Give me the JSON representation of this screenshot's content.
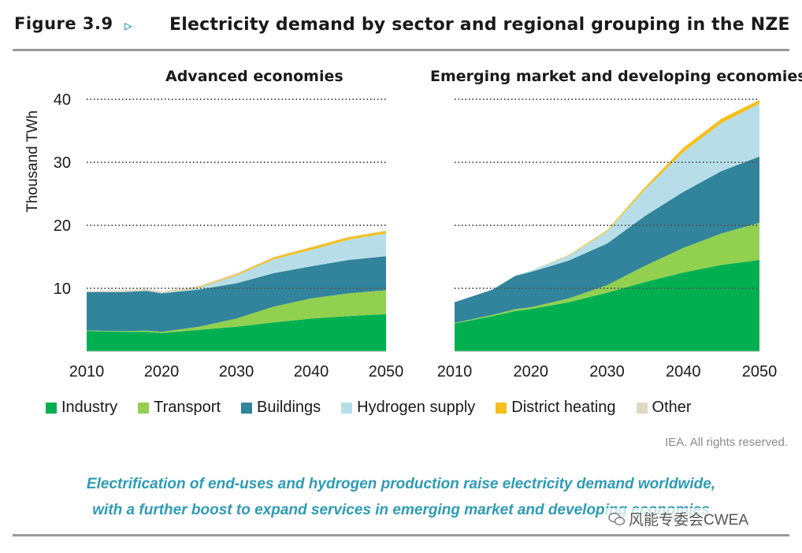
{
  "header": {
    "figure_label": "Figure 3.9",
    "arrow": "▹",
    "title": "Electricity demand by sector and regional grouping in the NZE"
  },
  "legend": [
    {
      "name": "Industry",
      "color": "#00b050"
    },
    {
      "name": "Transport",
      "color": "#92d050"
    },
    {
      "name": "Buildings",
      "color": "#31849b"
    },
    {
      "name": "Hydrogen supply",
      "color": "#b7dee8"
    },
    {
      "name": "District heating",
      "color": "#f5c01e"
    },
    {
      "name": "Other",
      "color": "#ddd9c4"
    }
  ],
  "rights": "IEA. All rights reserved.",
  "caption_lines": [
    "Electrification of end-uses and hydrogen production raise electricity demand worldwide,",
    "with a further boost to expand services in emerging market and developing economies"
  ],
  "watermark": "风能专委会CWEA",
  "chart_data": [
    {
      "type": "area",
      "stacked": true,
      "title": "Advanced economies",
      "ylabel": "Thousand TWh",
      "xlabel": "",
      "xlim": [
        2010,
        2050
      ],
      "ylim": [
        0,
        40
      ],
      "yticks": [
        10,
        20,
        30,
        40
      ],
      "xticks": [
        2010,
        2020,
        2030,
        2040,
        2050
      ],
      "x": [
        2010,
        2015,
        2018,
        2020,
        2025,
        2030,
        2035,
        2040,
        2045,
        2050
      ],
      "series": [
        {
          "name": "Industry",
          "values": [
            3.2,
            3.1,
            3.1,
            2.9,
            3.4,
            3.9,
            4.6,
            5.2,
            5.6,
            5.9
          ]
        },
        {
          "name": "Transport",
          "values": [
            0.1,
            0.1,
            0.2,
            0.2,
            0.5,
            1.3,
            2.5,
            3.2,
            3.6,
            3.8
          ]
        },
        {
          "name": "Buildings",
          "values": [
            6.1,
            6.2,
            6.3,
            6.1,
            5.9,
            5.6,
            5.3,
            5.1,
            5.3,
            5.4
          ]
        },
        {
          "name": "Hydrogen supply",
          "values": [
            0,
            0,
            0,
            0,
            0.3,
            1.2,
            2.2,
            2.6,
            3.2,
            3.6
          ]
        },
        {
          "name": "District heating",
          "values": [
            0,
            0,
            0,
            0,
            0.1,
            0.2,
            0.3,
            0.4,
            0.4,
            0.4
          ]
        },
        {
          "name": "Other",
          "values": [
            0.2,
            0.3,
            0.3,
            0.3,
            0.2,
            0.2,
            0.1,
            0.1,
            0.1,
            0.1
          ]
        }
      ]
    },
    {
      "type": "area",
      "stacked": true,
      "title": "Emerging market and developing economies",
      "ylabel": "",
      "xlabel": "",
      "xlim": [
        2010,
        2050
      ],
      "ylim": [
        0,
        40
      ],
      "yticks": [
        10,
        20,
        30,
        40
      ],
      "xticks": [
        2010,
        2020,
        2030,
        2040,
        2050
      ],
      "x": [
        2010,
        2015,
        2018,
        2020,
        2025,
        2030,
        2035,
        2040,
        2045,
        2050
      ],
      "series": [
        {
          "name": "Industry",
          "values": [
            4.4,
            5.6,
            6.4,
            6.7,
            7.8,
            9.3,
            11.0,
            12.5,
            13.7,
            14.5
          ]
        },
        {
          "name": "Transport",
          "values": [
            0.1,
            0.2,
            0.3,
            0.3,
            0.6,
            1.2,
            2.6,
            3.9,
            5.0,
            5.9
          ]
        },
        {
          "name": "Buildings",
          "values": [
            3.3,
            4.0,
            5.3,
            5.6,
            6.0,
            6.6,
            7.9,
            8.9,
            9.9,
            10.5
          ]
        },
        {
          "name": "Hydrogen supply",
          "values": [
            0,
            0,
            0,
            0.2,
            0.8,
            1.9,
            4.2,
            6.3,
            7.6,
            8.4
          ]
        },
        {
          "name": "District heating",
          "values": [
            0,
            0,
            0,
            0,
            0.1,
            0.2,
            0.4,
            0.7,
            0.7,
            0.6
          ]
        },
        {
          "name": "Other",
          "values": [
            0,
            0,
            0,
            0,
            0,
            0,
            0,
            0,
            0,
            0
          ]
        }
      ]
    }
  ]
}
